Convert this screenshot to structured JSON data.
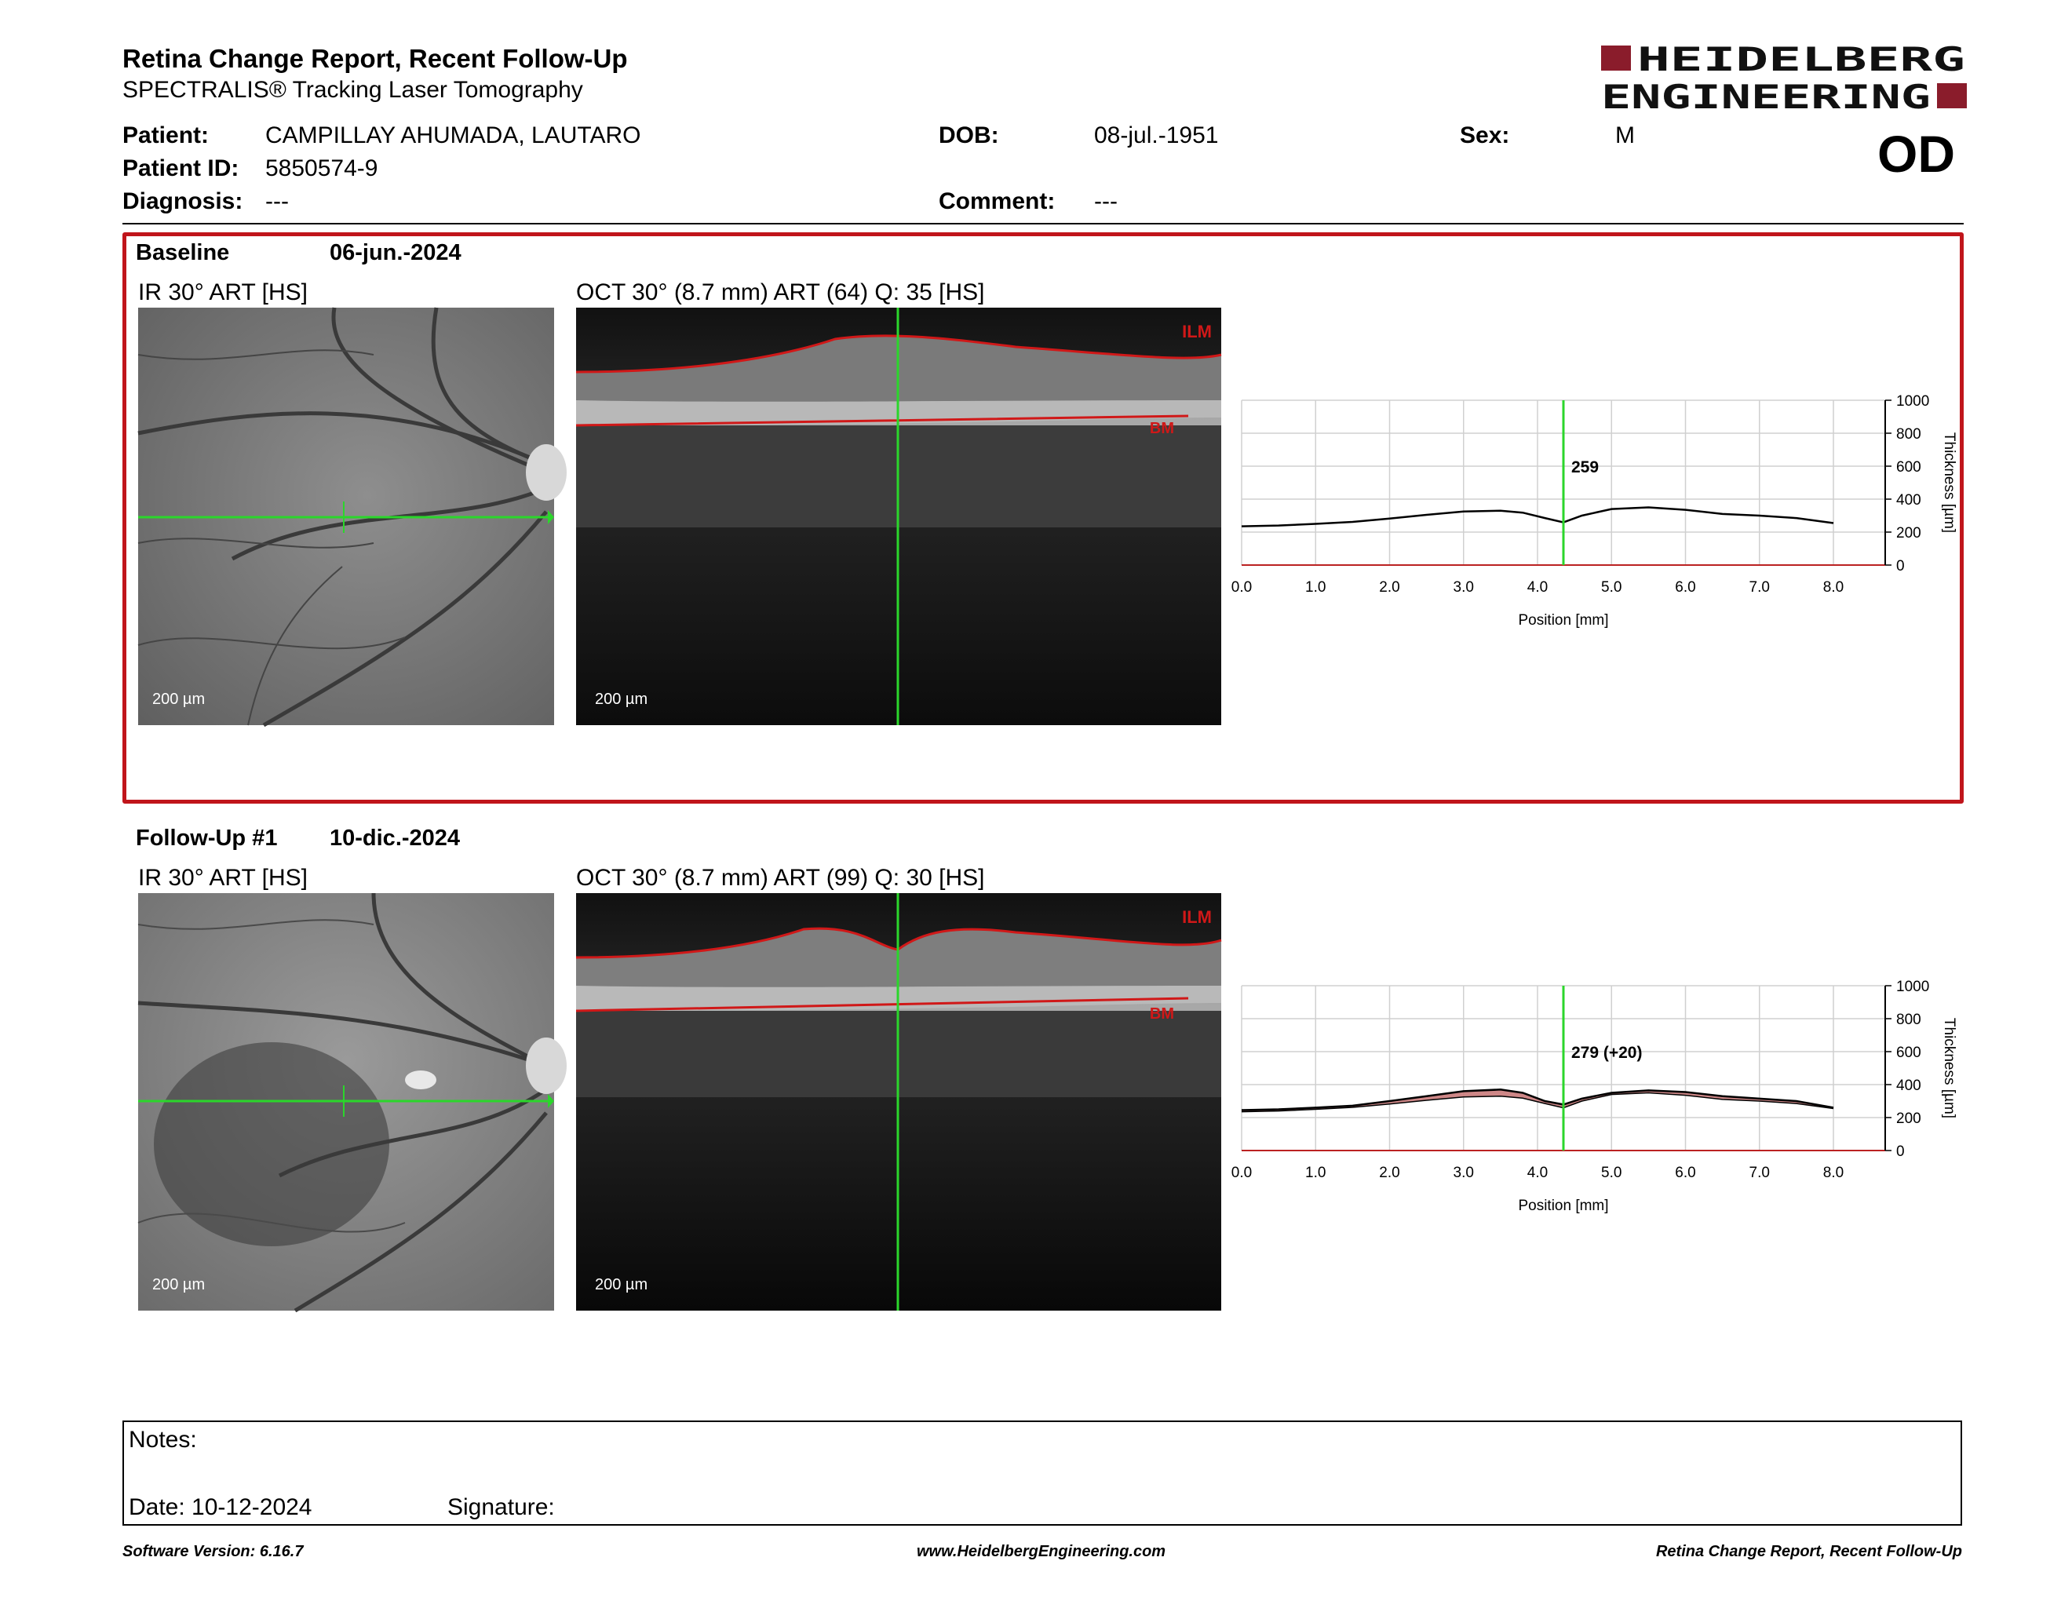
{
  "header": {
    "title": "Retina Change Report, Recent Follow-Up",
    "subtitle": "SPECTRALIS® Tracking Laser Tomography",
    "logo_line1": "HEIDELBERG",
    "logo_line2": "ENGINEERING",
    "eye": "OD"
  },
  "patient": {
    "patient_label": "Patient:",
    "patient_value": "CAMPILLAY AHUMADA, LAUTARO",
    "id_label": "Patient ID:",
    "id_value": "5850574-9",
    "diagnosis_label": "Diagnosis:",
    "diagnosis_value": "---",
    "dob_label": "DOB:",
    "dob_value": "08-jul.-1951",
    "comment_label": "Comment:",
    "comment_value": "---",
    "sex_label": "Sex:",
    "sex_value": "M"
  },
  "baseline": {
    "label": "Baseline",
    "date": "06-jun.-2024",
    "ir_label": "IR 30° ART [HS]",
    "oct_label": "OCT 30° (8.7 mm) ART (64) Q: 35 [HS]",
    "ir_scale": "200 µm",
    "oct_scale": "200 µm",
    "ilm_label": "ILM",
    "bm_label": "BM"
  },
  "followup": {
    "label": "Follow-Up #1",
    "date": "10-dic.-2024",
    "ir_label": "IR 30° ART [HS]",
    "oct_label": "OCT 30° (8.7 mm) ART (99) Q: 30 [HS]",
    "ir_scale": "200 µm",
    "oct_scale": "200 µm",
    "ilm_label": "ILM",
    "bm_label": "BM"
  },
  "chart_data": [
    {
      "type": "line",
      "name": "baseline-thickness",
      "xlabel": "Position [mm]",
      "ylabel": "Thickness [µm]",
      "xlim": [
        0,
        8.7
      ],
      "ylim": [
        0,
        1000
      ],
      "x_ticks": [
        "0.0",
        "1.0",
        "2.0",
        "3.0",
        "4.0",
        "5.0",
        "6.0",
        "7.0",
        "8.0"
      ],
      "y_ticks": [
        "0",
        "200",
        "400",
        "600",
        "800",
        "1000"
      ],
      "grid": true,
      "cursor_x": 4.35,
      "cursor_label": "259",
      "x": [
        0.0,
        0.5,
        1.0,
        1.5,
        2.0,
        2.5,
        3.0,
        3.5,
        3.8,
        4.1,
        4.35,
        4.6,
        5.0,
        5.5,
        6.0,
        6.5,
        7.0,
        7.5,
        8.0
      ],
      "y": [
        235,
        240,
        250,
        262,
        282,
        305,
        325,
        330,
        318,
        285,
        259,
        300,
        340,
        350,
        335,
        310,
        300,
        285,
        255
      ]
    },
    {
      "type": "area",
      "name": "followup-thickness",
      "xlabel": "Position [mm]",
      "ylabel": "Thickness [µm]",
      "xlim": [
        0,
        8.7
      ],
      "ylim": [
        0,
        1000
      ],
      "x_ticks": [
        "0.0",
        "1.0",
        "2.0",
        "3.0",
        "4.0",
        "5.0",
        "6.0",
        "7.0",
        "8.0"
      ],
      "y_ticks": [
        "0",
        "200",
        "400",
        "600",
        "800",
        "1000"
      ],
      "grid": true,
      "cursor_x": 4.35,
      "cursor_label": "279 (+20)",
      "x": [
        0.0,
        0.5,
        1.0,
        1.5,
        2.0,
        2.5,
        3.0,
        3.5,
        3.8,
        4.1,
        4.35,
        4.6,
        5.0,
        5.5,
        6.0,
        6.5,
        7.0,
        7.5,
        8.0
      ],
      "baseline": [
        235,
        240,
        250,
        262,
        282,
        305,
        325,
        330,
        318,
        285,
        259,
        300,
        340,
        350,
        335,
        310,
        300,
        285,
        255
      ],
      "y": [
        245,
        250,
        260,
        272,
        300,
        330,
        360,
        370,
        350,
        300,
        279,
        315,
        350,
        365,
        355,
        330,
        315,
        300,
        260
      ],
      "fill_color": "#c97a7a"
    }
  ],
  "notes": {
    "notes_label": "Notes:",
    "date_label": "Date: 10-12-2024",
    "signature_label": "Signature:"
  },
  "footer": {
    "left": "Software Version: 6.16.7",
    "center": "www.HeidelbergEngineering.com",
    "right": "Retina Change Report, Recent Follow-Up"
  },
  "colors": {
    "accent": "#c0151b",
    "cursor": "#2bd62b",
    "segmentation": "#d01818"
  }
}
